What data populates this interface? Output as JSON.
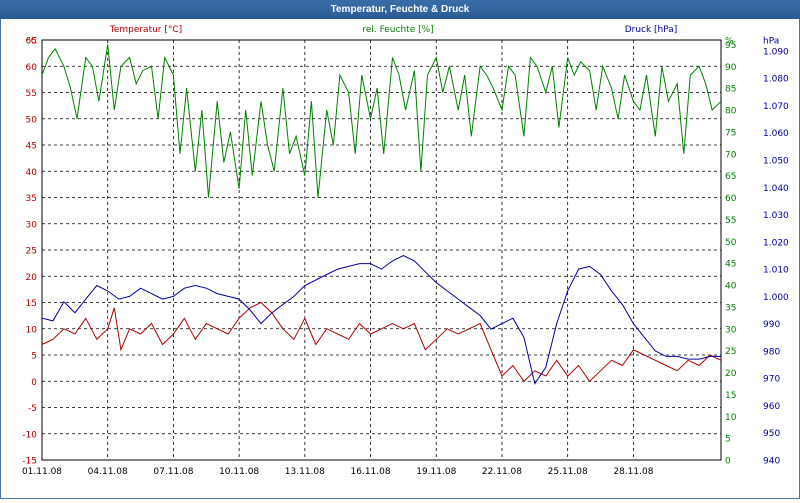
{
  "window": {
    "title": "Temperatur, Feuchte & Druck"
  },
  "chart_data": {
    "type": "line",
    "title": "Temperatur, Feuchte & Druck",
    "grid": true,
    "x": {
      "ticks": [
        "01.11.08",
        "04.11.08",
        "07.11.08",
        "10.11.08",
        "13.11.08",
        "16.11.08",
        "19.11.08",
        "22.11.08",
        "25.11.08",
        "28.11.08"
      ],
      "tick_days": [
        1,
        4,
        7,
        10,
        13,
        16,
        19,
        22,
        25,
        28
      ],
      "range_days": [
        1,
        32
      ]
    },
    "axes": {
      "temperature": {
        "label": "Temperatur [°C]",
        "unit": "°C",
        "ylim": [
          -15,
          65
        ],
        "ticks": [
          -15,
          -10,
          -5,
          0,
          5,
          10,
          15,
          20,
          25,
          30,
          35,
          40,
          45,
          50,
          55,
          60,
          65
        ],
        "color": "#b00000"
      },
      "humidity": {
        "label": "rel. Feuchte [%]",
        "unit": "%",
        "ylim": [
          0,
          96
        ],
        "ticks": [
          0,
          5,
          10,
          15,
          20,
          25,
          30,
          35,
          40,
          45,
          50,
          55,
          60,
          65,
          70,
          75,
          80,
          85,
          90,
          95
        ],
        "color": "#008000"
      },
      "pressure": {
        "label": "Druck [hPa]",
        "unit": "hPa",
        "ylim": [
          940,
          1094
        ],
        "ticks": [
          "940",
          "950",
          "960",
          "970",
          "980",
          "990",
          "1.000",
          "1.010",
          "1.020",
          "1.030",
          "1.040",
          "1.050",
          "1.060",
          "1.070",
          "1.080",
          "1.090"
        ],
        "tick_values": [
          940,
          950,
          960,
          970,
          980,
          990,
          1000,
          1010,
          1020,
          1030,
          1040,
          1050,
          1060,
          1070,
          1080,
          1090
        ],
        "color": "#0000a0"
      }
    },
    "series": [
      {
        "name": "Temperatur [°C]",
        "axis": "temperature",
        "color": "#b00000",
        "x": [
          1,
          1.5,
          2,
          2.5,
          3,
          3.5,
          4,
          4.3,
          4.6,
          5,
          5.5,
          6,
          6.5,
          7,
          7.5,
          8,
          8.5,
          9,
          9.5,
          10,
          10.5,
          11,
          11.5,
          12,
          12.5,
          13,
          13.5,
          14,
          14.5,
          15,
          15.5,
          16,
          16.5,
          17,
          17.5,
          18,
          18.5,
          19,
          19.5,
          20,
          20.5,
          21,
          21.5,
          22,
          22.5,
          23,
          23.5,
          24,
          24.5,
          25,
          25.5,
          26,
          26.5,
          27,
          27.5,
          28,
          28.5,
          29,
          29.5,
          30,
          30.5,
          31,
          31.5,
          32
        ],
        "values": [
          7,
          8,
          10,
          9,
          12,
          8,
          10,
          14,
          6,
          10,
          9,
          11,
          7,
          9,
          12,
          8,
          11,
          10,
          9,
          12,
          14,
          15,
          13,
          10,
          8,
          12,
          7,
          10,
          9,
          8,
          11,
          9,
          10,
          11,
          10,
          11,
          6,
          8,
          10,
          9,
          10,
          11,
          6,
          1,
          3,
          0,
          2,
          1,
          4,
          1,
          3,
          0,
          2,
          4,
          3,
          6,
          5,
          4,
          3,
          2,
          4,
          3,
          5,
          4
        ]
      },
      {
        "name": "rel. Feuchte [%]",
        "axis": "humidity",
        "color": "#008000",
        "x": [
          1,
          1.3,
          1.6,
          2,
          2.3,
          2.6,
          3,
          3.3,
          3.6,
          4,
          4.3,
          4.6,
          5,
          5.3,
          5.6,
          6,
          6.3,
          6.6,
          7,
          7.3,
          7.6,
          8,
          8.3,
          8.6,
          9,
          9.3,
          9.6,
          10,
          10.3,
          10.6,
          11,
          11.3,
          11.6,
          12,
          12.3,
          12.6,
          13,
          13.3,
          13.6,
          14,
          14.3,
          14.6,
          15,
          15.3,
          15.6,
          16,
          16.3,
          16.6,
          17,
          17.3,
          17.6,
          18,
          18.3,
          18.6,
          19,
          19.3,
          19.6,
          20,
          20.3,
          20.6,
          21,
          21.3,
          21.6,
          22,
          22.3,
          22.6,
          23,
          23.3,
          23.6,
          24,
          24.3,
          24.6,
          25,
          25.3,
          25.6,
          26,
          26.3,
          26.6,
          27,
          27.3,
          27.6,
          28,
          28.3,
          28.6,
          29,
          29.3,
          29.6,
          30,
          30.3,
          30.6,
          31,
          31.3,
          31.6,
          32
        ],
        "values": [
          88,
          92,
          94,
          90,
          85,
          78,
          92,
          90,
          82,
          95,
          80,
          90,
          92,
          86,
          89,
          90,
          78,
          92,
          88,
          70,
          85,
          66,
          80,
          60,
          82,
          68,
          75,
          62,
          80,
          65,
          82,
          72,
          66,
          85,
          70,
          74,
          65,
          82,
          60,
          80,
          72,
          88,
          84,
          70,
          88,
          78,
          85,
          70,
          92,
          88,
          80,
          89,
          66,
          88,
          92,
          84,
          90,
          80,
          88,
          74,
          90,
          88,
          85,
          80,
          90,
          88,
          74,
          92,
          90,
          84,
          90,
          76,
          92,
          88,
          91,
          89,
          80,
          90,
          85,
          78,
          88,
          82,
          80,
          88,
          74,
          90,
          82,
          86,
          70,
          88,
          90,
          86,
          80,
          82
        ]
      },
      {
        "name": "Druck [hPa]",
        "axis": "pressure",
        "color": "#0000a0",
        "x": [
          1,
          1.5,
          2,
          2.5,
          3,
          3.5,
          4,
          4.5,
          5,
          5.5,
          6,
          6.5,
          7,
          7.5,
          8,
          8.5,
          9,
          9.5,
          10,
          10.5,
          11,
          11.5,
          12,
          12.5,
          13,
          13.5,
          14,
          14.5,
          15,
          15.5,
          16,
          16.5,
          17,
          17.5,
          18,
          18.5,
          19,
          19.5,
          20,
          20.5,
          21,
          21.5,
          22,
          22.5,
          23,
          23.5,
          24,
          24.5,
          25,
          25.5,
          26,
          26.5,
          27,
          27.5,
          28,
          28.5,
          29,
          29.5,
          30,
          30.5,
          31,
          31.5,
          32
        ],
        "values": [
          992,
          991,
          998,
          994,
          999,
          1004,
          1002,
          999,
          1000,
          1003,
          1001,
          999,
          1000,
          1003,
          1004,
          1003,
          1001,
          1000,
          999,
          995,
          990,
          994,
          997,
          1000,
          1004,
          1006,
          1008,
          1010,
          1011,
          1012,
          1012,
          1010,
          1013,
          1015,
          1013,
          1009,
          1005,
          1002,
          999,
          996,
          993,
          988,
          990,
          992,
          985,
          968,
          974,
          990,
          1002,
          1010,
          1011,
          1008,
          1002,
          997,
          990,
          985,
          980,
          978,
          978,
          977,
          977,
          978,
          978
        ]
      }
    ]
  }
}
